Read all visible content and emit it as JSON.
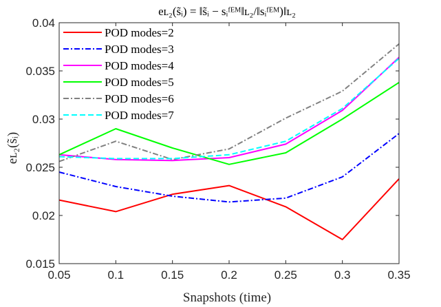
{
  "chart_data": {
    "type": "line",
    "title": "e_{L_2}(̃s_i) = ‖̃s_i − s_i^{FEM}‖_{L_2} / ‖s_i^{FEM})‖_{L_2}",
    "title_display": "eʟ₂(s̃ᵢ) = ‖s̃ᵢ − sᵢᶠᴱᴹ‖ʟ₂/‖sᵢᶠᴱᴹ)‖ʟ₂",
    "xlabel": "Snapshots (time)",
    "ylabel": "eʟ₂(s̃ᵢ)",
    "xlim": [
      0.05,
      0.35
    ],
    "ylim": [
      0.015,
      0.04
    ],
    "xticks": [
      "0.05",
      "0.1",
      "0.15",
      "0.2",
      "0.25",
      "0.3",
      "0.35"
    ],
    "yticks": [
      "0.015",
      "0.02",
      "0.025",
      "0.03",
      "0.035",
      "0.04"
    ],
    "x": [
      0.05,
      0.1,
      0.15,
      0.2,
      0.25,
      0.3,
      0.35
    ],
    "grid": false,
    "legend_position": "top-left",
    "series": [
      {
        "name": "POD modes=2",
        "color": "#ff0000",
        "dash": "solid",
        "values": [
          0.0216,
          0.0204,
          0.0222,
          0.0231,
          0.0209,
          0.0175,
          0.0238
        ]
      },
      {
        "name": "POD modes=3",
        "color": "#0000ff",
        "dash": "dashdot",
        "values": [
          0.0245,
          0.023,
          0.022,
          0.0214,
          0.0218,
          0.024,
          0.0285
        ]
      },
      {
        "name": "POD modes=4",
        "color": "#ff00ff",
        "dash": "solid",
        "values": [
          0.0263,
          0.0258,
          0.0257,
          0.026,
          0.0274,
          0.0309,
          0.0364
        ]
      },
      {
        "name": "POD modes=5",
        "color": "#00ff00",
        "dash": "solid",
        "values": [
          0.0263,
          0.029,
          0.027,
          0.0253,
          0.0265,
          0.03,
          0.0338
        ]
      },
      {
        "name": "POD modes=6",
        "color": "#808080",
        "dash": "dashdot",
        "values": [
          0.0256,
          0.0277,
          0.0258,
          0.0269,
          0.0301,
          0.0329,
          0.0378
        ]
      },
      {
        "name": "POD modes=7",
        "color": "#00ffff",
        "dash": "dashed",
        "values": [
          0.0261,
          0.0259,
          0.0259,
          0.0263,
          0.0277,
          0.0311,
          0.0363
        ]
      }
    ]
  }
}
